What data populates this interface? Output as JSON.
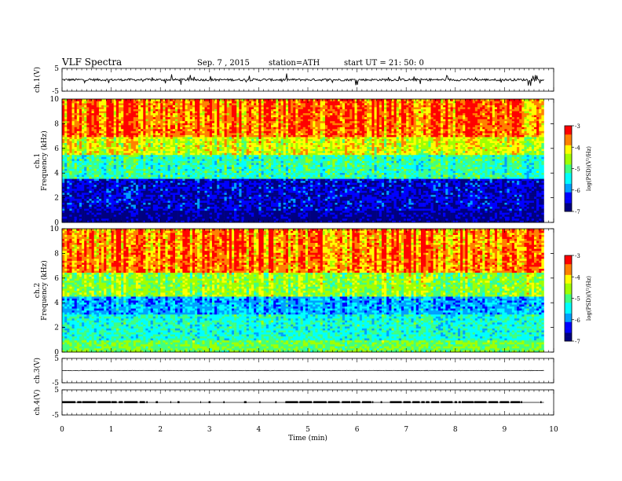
{
  "header": {
    "title": "VLF Spectra",
    "date": "Sep. 7 , 2015",
    "station": "station=ATH",
    "start": "start UT = 21: 50: 0"
  },
  "colors": {
    "colormap": [
      "#000080",
      "#0000ff",
      "#00a0ff",
      "#00ffff",
      "#40ff80",
      "#a0ff00",
      "#ffff00",
      "#ff8000",
      "#ff0000",
      "#ffffff"
    ],
    "trace": "#000000"
  },
  "chart_data": [
    {
      "type": "line",
      "panel": "ch1-waveform",
      "ylabel": "ch.1(V)",
      "ylim": [
        -5,
        5
      ],
      "yticks": [
        "5",
        "-5"
      ],
      "xlim": [
        0,
        10
      ],
      "description_values": {
        "baseline": 0,
        "typical_amplitude": 0.5,
        "spike_amplitude": 2.5
      }
    },
    {
      "type": "heatmap",
      "panel": "ch1-spectrogram",
      "ylabel_top": "ch.1",
      "ylabel": "Frequency (kHz)",
      "ylim": [
        0,
        10
      ],
      "yticks": [
        "0",
        "2",
        "4",
        "6",
        "8",
        "10"
      ],
      "xlim": [
        0,
        10
      ],
      "data_end_min": 9.8,
      "colorbar": {
        "label": "log(PSD)(V²/Hz)",
        "range": [
          -7,
          -3
        ],
        "ticks": [
          "-3",
          "-4",
          "-5",
          "-6",
          "-7"
        ]
      },
      "band_edges_khz": [
        {
          "f": 1.0,
          "level": -6.8
        },
        {
          "f": 3.5,
          "level": -6.5
        },
        {
          "f": 5.5,
          "level": -5.2
        },
        {
          "f": 7.0,
          "level": -4.3
        },
        {
          "f": 10.0,
          "level": -3.6
        }
      ]
    },
    {
      "type": "heatmap",
      "panel": "ch2-spectrogram",
      "ylabel_top": "ch.2",
      "ylabel": "Frequency (kHz)",
      "ylim": [
        0,
        10
      ],
      "yticks": [
        "0",
        "2",
        "4",
        "6",
        "8",
        "10"
      ],
      "xlim": [
        0,
        10
      ],
      "data_end_min": 9.8,
      "colorbar": {
        "label": "log(PSD)(V²/Hz)",
        "range": [
          -7,
          -3
        ],
        "ticks": [
          "-3",
          "-4",
          "-5",
          "-6",
          "-7"
        ]
      },
      "band_edges_khz": [
        {
          "f": 1.0,
          "level": -4.8
        },
        {
          "f": 3.0,
          "level": -5.3
        },
        {
          "f": 4.5,
          "level": -5.8
        },
        {
          "f": 6.5,
          "level": -4.6
        },
        {
          "f": 10.0,
          "level": -3.6
        }
      ]
    },
    {
      "type": "line",
      "panel": "ch3-waveform",
      "ylabel": "ch.3(V)",
      "ylim": [
        -5,
        5
      ],
      "yticks": [
        "5",
        "-5"
      ],
      "xlim": [
        0,
        10
      ],
      "description_values": {
        "baseline": 0,
        "typical_amplitude": 0.1
      }
    },
    {
      "type": "line",
      "panel": "ch4-waveform",
      "ylabel": "ch.4(V)",
      "ylim": [
        -5,
        5
      ],
      "yticks": [
        "5",
        "-5"
      ],
      "xlim": [
        0,
        10
      ],
      "xlabel": "Time (min)",
      "xticks": [
        "0",
        "1",
        "2",
        "3",
        "4",
        "5",
        "6",
        "7",
        "8",
        "9",
        "10"
      ],
      "description_values": {
        "baseline": 0,
        "pulse_amplitude": 0.5
      }
    }
  ]
}
